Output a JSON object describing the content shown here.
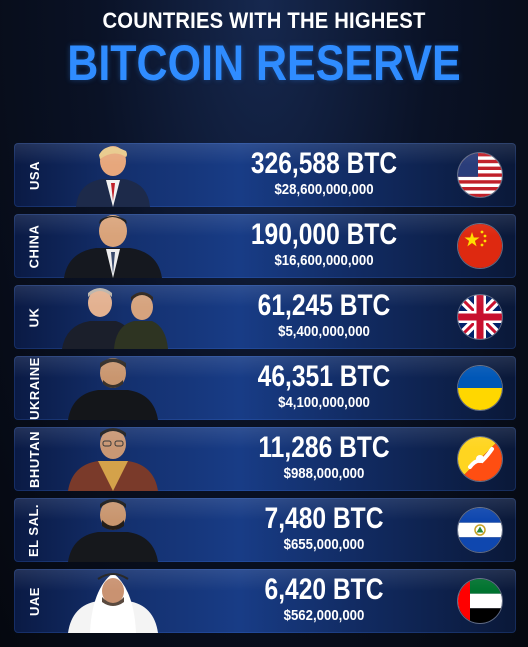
{
  "header": {
    "subtitle": "COUNTRIES WITH THE HIGHEST",
    "title": "BITCOIN RESERVE"
  },
  "rows": [
    {
      "country": "USA",
      "btc": "326,588 BTC",
      "usd": "$28,600,000,000",
      "flag_icon": "usa-flag-icon"
    },
    {
      "country": "CHINA",
      "btc": "190,000 BTC",
      "usd": "$16,600,000,000",
      "flag_icon": "china-flag-icon"
    },
    {
      "country": "UK",
      "btc": "61,245 BTC",
      "usd": "$5,400,000,000",
      "flag_icon": "uk-flag-icon"
    },
    {
      "country": "UKRAINE",
      "btc": "46,351 BTC",
      "usd": "$4,100,000,000",
      "flag_icon": "ukraine-flag-icon"
    },
    {
      "country": "BHUTAN",
      "btc": "11,286 BTC",
      "usd": "$988,000,000",
      "flag_icon": "bhutan-flag-icon"
    },
    {
      "country": "EL SAL.",
      "btc": "7,480 BTC",
      "usd": "$655,000,000",
      "flag_icon": "el-salvador-flag-icon"
    },
    {
      "country": "UAE",
      "btc": "6,420 BTC",
      "usd": "$562,000,000",
      "flag_icon": "uae-flag-icon"
    }
  ],
  "colors": {
    "title_blue": "#2f8cff",
    "row_blue": "#183c86",
    "background": "#060b18"
  }
}
